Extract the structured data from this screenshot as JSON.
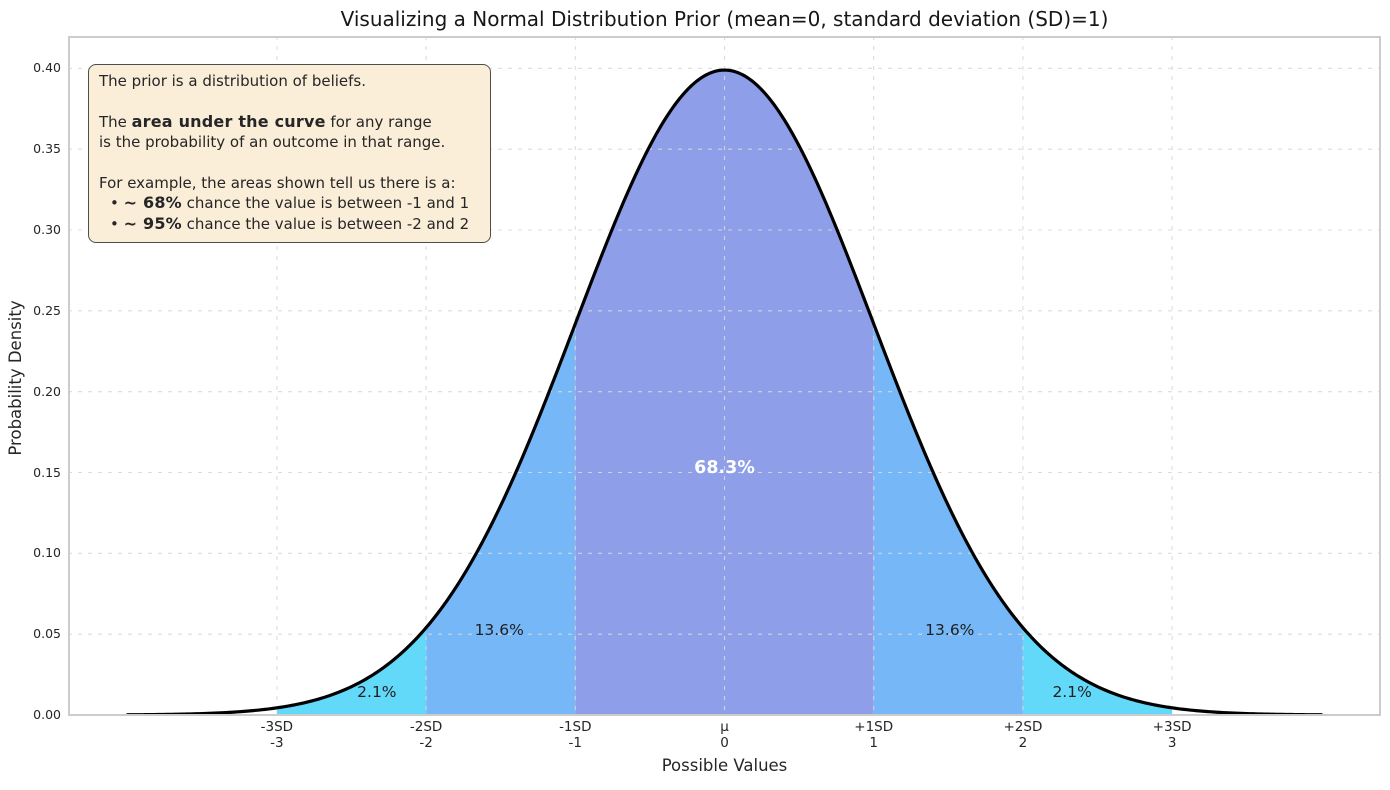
{
  "title": "Visualizing a Normal Distribution Prior (mean=0, standard deviation (SD)=1)",
  "infobox": {
    "p1": "The prior is a distribution of beliefs.",
    "p2_pre": "The ",
    "p2_bold": "area under the curve",
    "p2_post": " for any range",
    "p2_line2": "is the probability of an outcome in that range.",
    "p3_intro": "For example, the areas shown tell us there is a:",
    "bullets": [
      {
        "marker": "• ",
        "bold": "~ 68%",
        "rest": " chance the value is between -1 and 1"
      },
      {
        "marker": "• ",
        "bold": "~ 95%",
        "rest": " chance the value is between -2 and 2"
      }
    ],
    "bg_color": "#faeed9",
    "border_color": "#4d4d4d"
  },
  "chart_data": {
    "type": "area",
    "title": "Visualizing a Normal Distribution Prior (mean=0, standard deviation (SD)=1)",
    "xlabel": "Possible Values",
    "ylabel": "Probability Density",
    "distribution": {
      "shape": "normal",
      "mean": 0,
      "sd": 1,
      "peak_density": 0.3989
    },
    "xlim": [
      -4.4,
      4.4
    ],
    "ylim": [
      0,
      0.42
    ],
    "curve_range_sd": [
      -4,
      4
    ],
    "grid": {
      "show": true,
      "style": "dashed",
      "color": "#d9d9d9"
    },
    "spine_color": "#cccccc",
    "curve_color": "#000000",
    "y_ticks": [
      "0.00",
      "0.05",
      "0.10",
      "0.15",
      "0.20",
      "0.25",
      "0.30",
      "0.35",
      "0.40"
    ],
    "x_ticks": [
      {
        "z": -3,
        "line1": "-3SD",
        "line2": "-3"
      },
      {
        "z": -2,
        "line1": "-2SD",
        "line2": "-2"
      },
      {
        "z": -1,
        "line1": "-1SD",
        "line2": "-1"
      },
      {
        "z": 0,
        "line1": "μ",
        "line2": "0"
      },
      {
        "z": 1,
        "line1": "+1SD",
        "line2": "1"
      },
      {
        "z": 2,
        "line1": "+2SD",
        "line2": "2"
      },
      {
        "z": 3,
        "line1": "+3SD",
        "line2": "3"
      }
    ],
    "bands": [
      {
        "from_sd": -3,
        "to_sd": -2,
        "probability_label": "2.1%",
        "fill": "#63d9fa",
        "label_z": -2.33,
        "label_density": 0.0145,
        "label_color": "#1f1f1f",
        "label_bold": false
      },
      {
        "from_sd": -2,
        "to_sd": -1,
        "probability_label": "13.6%",
        "fill": "#76b7f8",
        "label_z": -1.51,
        "label_density": 0.053,
        "label_color": "#1f1f1f",
        "label_bold": false
      },
      {
        "from_sd": -1,
        "to_sd": 1,
        "probability_label": "68.3%",
        "fill": "#8e9ee8",
        "label_z": 0,
        "label_density": 0.153,
        "label_color": "#ffffff",
        "label_bold": true
      },
      {
        "from_sd": 1,
        "to_sd": 2,
        "probability_label": "13.6%",
        "fill": "#76b7f8",
        "label_z": 1.51,
        "label_density": 0.053,
        "label_color": "#1f1f1f",
        "label_bold": false
      },
      {
        "from_sd": 2,
        "to_sd": 3,
        "probability_label": "2.1%",
        "fill": "#63d9fa",
        "label_z": 2.33,
        "label_density": 0.0145,
        "label_color": "#1f1f1f",
        "label_bold": false
      }
    ]
  }
}
